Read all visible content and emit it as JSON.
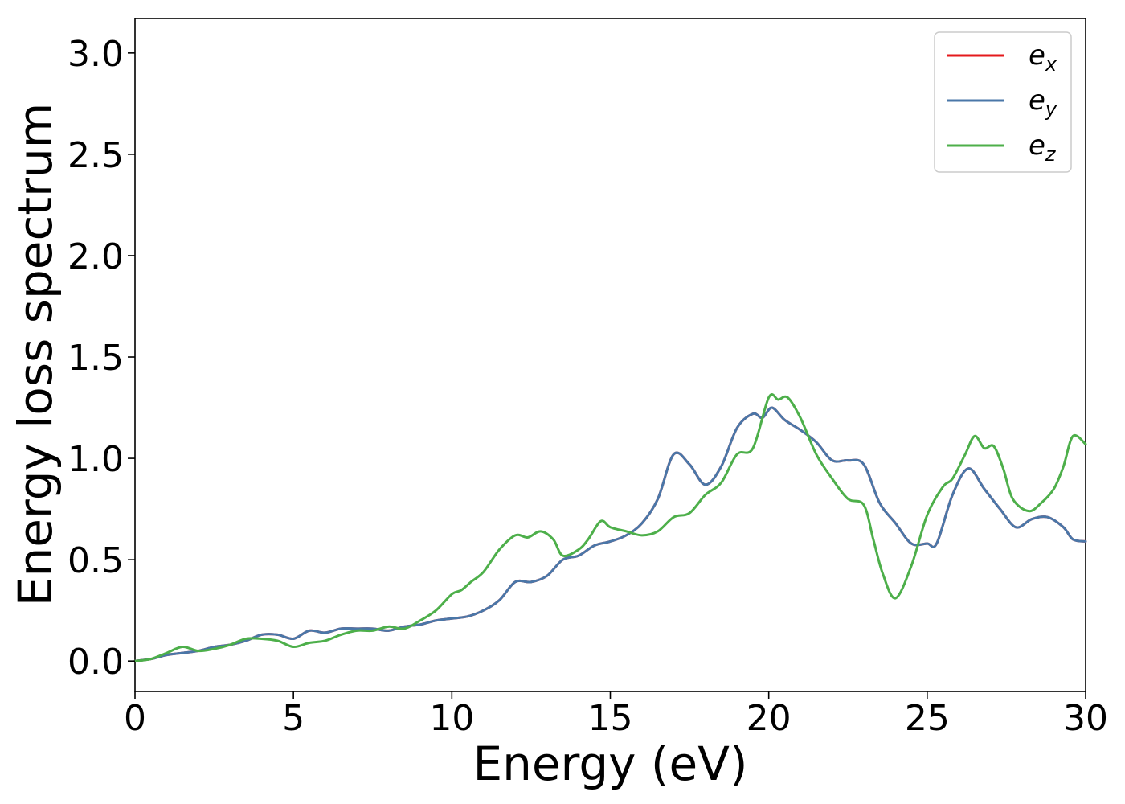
{
  "chart_data": {
    "type": "line",
    "title": "",
    "xlabel": "Energy (eV)",
    "ylabel": "Energy loss spectrum",
    "xlim": [
      0,
      30
    ],
    "ylim": [
      -0.15,
      3.17
    ],
    "x_ticks": [
      0,
      5,
      10,
      15,
      20,
      25,
      30
    ],
    "y_ticks": [
      0.0,
      0.5,
      1.0,
      1.5,
      2.0,
      2.5,
      3.0
    ],
    "x_tick_labels": [
      "0",
      "5",
      "10",
      "15",
      "20",
      "25",
      "30"
    ],
    "y_tick_labels": [
      "0.0",
      "0.5",
      "1.0",
      "1.5",
      "2.0",
      "2.5",
      "3.0"
    ],
    "grid": false,
    "legend_position": "top-right",
    "series": [
      {
        "name": "e",
        "sub": "x",
        "color": "#e41a1c",
        "points": [
          [
            0,
            0
          ],
          [
            0.5,
            0.01
          ],
          [
            1,
            0.03
          ],
          [
            1.5,
            0.04
          ],
          [
            2,
            0.05
          ],
          [
            2.5,
            0.07
          ],
          [
            3,
            0.08
          ],
          [
            3.5,
            0.1
          ],
          [
            4,
            0.13
          ],
          [
            4.5,
            0.13
          ],
          [
            5,
            0.11
          ],
          [
            5.5,
            0.15
          ],
          [
            6,
            0.14
          ],
          [
            6.5,
            0.16
          ],
          [
            7,
            0.16
          ],
          [
            7.5,
            0.16
          ],
          [
            8,
            0.15
          ],
          [
            8.5,
            0.17
          ],
          [
            9,
            0.18
          ],
          [
            9.5,
            0.2
          ],
          [
            10,
            0.21
          ],
          [
            10.5,
            0.22
          ],
          [
            11,
            0.25
          ],
          [
            11.5,
            0.3
          ],
          [
            12,
            0.39
          ],
          [
            12.5,
            0.39
          ],
          [
            13,
            0.42
          ],
          [
            13.5,
            0.5
          ],
          [
            14,
            0.52
          ],
          [
            14.5,
            0.57
          ],
          [
            15,
            0.59
          ],
          [
            15.5,
            0.62
          ],
          [
            16,
            0.68
          ],
          [
            16.5,
            0.8
          ],
          [
            17,
            1.02
          ],
          [
            17.5,
            0.97
          ],
          [
            18,
            0.87
          ],
          [
            18.5,
            0.96
          ],
          [
            19,
            1.15
          ],
          [
            19.5,
            1.22
          ],
          [
            19.8,
            1.2
          ],
          [
            20.1,
            1.25
          ],
          [
            20.5,
            1.19
          ],
          [
            21,
            1.14
          ],
          [
            21.5,
            1.08
          ],
          [
            22,
            0.99
          ],
          [
            22.5,
            0.99
          ],
          [
            23,
            0.97
          ],
          [
            23.5,
            0.78
          ],
          [
            24,
            0.68
          ],
          [
            24.5,
            0.58
          ],
          [
            25,
            0.58
          ],
          [
            25.3,
            0.58
          ],
          [
            25.8,
            0.82
          ],
          [
            26.3,
            0.95
          ],
          [
            26.8,
            0.85
          ],
          [
            27.3,
            0.75
          ],
          [
            27.8,
            0.66
          ],
          [
            28.3,
            0.7
          ],
          [
            28.8,
            0.71
          ],
          [
            29.3,
            0.66
          ],
          [
            29.6,
            0.6
          ],
          [
            30,
            0.59
          ]
        ]
      },
      {
        "name": "e",
        "sub": "y",
        "color": "#4a77a8",
        "points": [
          [
            0,
            0
          ],
          [
            0.5,
            0.01
          ],
          [
            1,
            0.03
          ],
          [
            1.5,
            0.04
          ],
          [
            2,
            0.05
          ],
          [
            2.5,
            0.07
          ],
          [
            3,
            0.08
          ],
          [
            3.5,
            0.1
          ],
          [
            4,
            0.13
          ],
          [
            4.5,
            0.13
          ],
          [
            5,
            0.11
          ],
          [
            5.5,
            0.15
          ],
          [
            6,
            0.14
          ],
          [
            6.5,
            0.16
          ],
          [
            7,
            0.16
          ],
          [
            7.5,
            0.16
          ],
          [
            8,
            0.15
          ],
          [
            8.5,
            0.17
          ],
          [
            9,
            0.18
          ],
          [
            9.5,
            0.2
          ],
          [
            10,
            0.21
          ],
          [
            10.5,
            0.22
          ],
          [
            11,
            0.25
          ],
          [
            11.5,
            0.3
          ],
          [
            12,
            0.39
          ],
          [
            12.5,
            0.39
          ],
          [
            13,
            0.42
          ],
          [
            13.5,
            0.5
          ],
          [
            14,
            0.52
          ],
          [
            14.5,
            0.57
          ],
          [
            15,
            0.59
          ],
          [
            15.5,
            0.62
          ],
          [
            16,
            0.68
          ],
          [
            16.5,
            0.8
          ],
          [
            17,
            1.02
          ],
          [
            17.5,
            0.97
          ],
          [
            18,
            0.87
          ],
          [
            18.5,
            0.96
          ],
          [
            19,
            1.15
          ],
          [
            19.5,
            1.22
          ],
          [
            19.8,
            1.2
          ],
          [
            20.1,
            1.25
          ],
          [
            20.5,
            1.19
          ],
          [
            21,
            1.14
          ],
          [
            21.5,
            1.08
          ],
          [
            22,
            0.99
          ],
          [
            22.5,
            0.99
          ],
          [
            23,
            0.97
          ],
          [
            23.5,
            0.78
          ],
          [
            24,
            0.68
          ],
          [
            24.5,
            0.58
          ],
          [
            25,
            0.58
          ],
          [
            25.3,
            0.58
          ],
          [
            25.8,
            0.82
          ],
          [
            26.3,
            0.95
          ],
          [
            26.8,
            0.85
          ],
          [
            27.3,
            0.75
          ],
          [
            27.8,
            0.66
          ],
          [
            28.3,
            0.7
          ],
          [
            28.8,
            0.71
          ],
          [
            29.3,
            0.66
          ],
          [
            29.6,
            0.6
          ],
          [
            30,
            0.59
          ]
        ]
      },
      {
        "name": "e",
        "sub": "z",
        "color": "#4daf4a",
        "points": [
          [
            0,
            0
          ],
          [
            0.5,
            0.01
          ],
          [
            1,
            0.04
          ],
          [
            1.5,
            0.07
          ],
          [
            2,
            0.05
          ],
          [
            2.5,
            0.06
          ],
          [
            3,
            0.08
          ],
          [
            3.5,
            0.11
          ],
          [
            4,
            0.11
          ],
          [
            4.5,
            0.1
          ],
          [
            5,
            0.07
          ],
          [
            5.5,
            0.09
          ],
          [
            6,
            0.1
          ],
          [
            6.5,
            0.13
          ],
          [
            7,
            0.15
          ],
          [
            7.5,
            0.15
          ],
          [
            8,
            0.17
          ],
          [
            8.5,
            0.16
          ],
          [
            9,
            0.2
          ],
          [
            9.5,
            0.25
          ],
          [
            10,
            0.33
          ],
          [
            10.3,
            0.35
          ],
          [
            10.6,
            0.39
          ],
          [
            11,
            0.44
          ],
          [
            11.5,
            0.55
          ],
          [
            12,
            0.62
          ],
          [
            12.4,
            0.61
          ],
          [
            12.8,
            0.64
          ],
          [
            13.2,
            0.6
          ],
          [
            13.5,
            0.52
          ],
          [
            14,
            0.55
          ],
          [
            14.3,
            0.6
          ],
          [
            14.7,
            0.69
          ],
          [
            15,
            0.66
          ],
          [
            15.5,
            0.64
          ],
          [
            16,
            0.62
          ],
          [
            16.5,
            0.64
          ],
          [
            17,
            0.71
          ],
          [
            17.5,
            0.73
          ],
          [
            18,
            0.82
          ],
          [
            18.5,
            0.88
          ],
          [
            19,
            1.02
          ],
          [
            19.5,
            1.05
          ],
          [
            20,
            1.3
          ],
          [
            20.3,
            1.29
          ],
          [
            20.6,
            1.3
          ],
          [
            21,
            1.2
          ],
          [
            21.5,
            1.02
          ],
          [
            22,
            0.9
          ],
          [
            22.5,
            0.8
          ],
          [
            23,
            0.77
          ],
          [
            23.3,
            0.6
          ],
          [
            23.6,
            0.43
          ],
          [
            24,
            0.31
          ],
          [
            24.5,
            0.47
          ],
          [
            25,
            0.72
          ],
          [
            25.5,
            0.86
          ],
          [
            25.8,
            0.9
          ],
          [
            26.2,
            1.02
          ],
          [
            26.5,
            1.11
          ],
          [
            26.8,
            1.05
          ],
          [
            27.1,
            1.06
          ],
          [
            27.4,
            0.95
          ],
          [
            27.7,
            0.8
          ],
          [
            28.2,
            0.74
          ],
          [
            28.6,
            0.78
          ],
          [
            29,
            0.85
          ],
          [
            29.3,
            0.96
          ],
          [
            29.6,
            1.11
          ],
          [
            30,
            1.07
          ]
        ]
      }
    ]
  }
}
